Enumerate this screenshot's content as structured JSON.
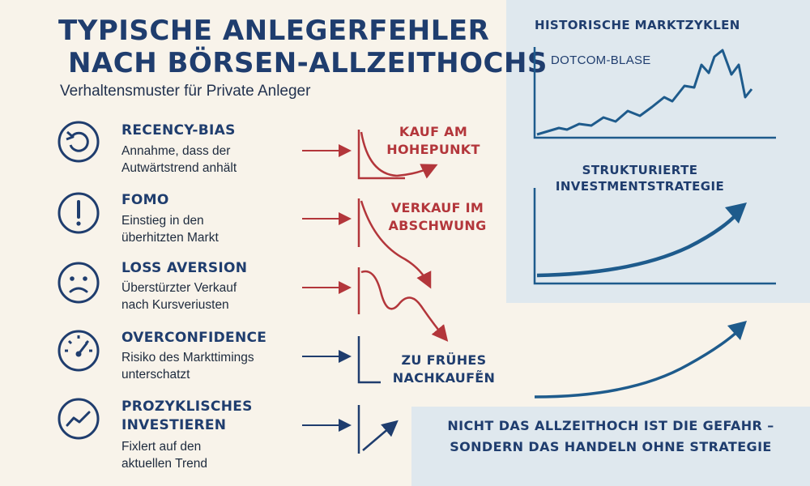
{
  "header": {
    "title_line1": "TYPISCHE ANLEGERFEHLER",
    "title_line2": "NACH BÖRSEN-ALLZEITHOCHS",
    "subtitle": "Verhaltensmuster für Private Anleger"
  },
  "errors": [
    {
      "icon": "refresh-icon",
      "heading": "RECENCY-BIAS",
      "desc_line1": "Annahme, dass der",
      "desc_line2": "Autwärtstrend anhält"
    },
    {
      "icon": "exclamation-icon",
      "heading": "FOMO",
      "desc_line1": "Einstieg in den",
      "desc_line2": "überhitzten Markt"
    },
    {
      "icon": "sad-face-icon",
      "heading": "LOSS AVERSION",
      "desc_line1": "Überstürzter Verkauf",
      "desc_line2": "nach Kursveriusten"
    },
    {
      "icon": "gauge-icon",
      "heading": "OVERCONFIDENCE",
      "desc_line1": "Risiko des Markttimings",
      "desc_line2": "unterschatzt"
    },
    {
      "icon": "trend-icon",
      "heading": "PROZYKLISCHES",
      "heading_line2": "INVESTIEREN",
      "desc_line1": "Fixlert auf den",
      "desc_line2": "aktuellen Trend"
    }
  ],
  "outcomes": [
    {
      "line1": "KAUF AM",
      "line2": "HOHEPUNKT"
    },
    {
      "line1": "VERKAUF IM",
      "line2": "ABSCHWUNG"
    },
    {
      "line1": "ZU FRÜHES",
      "line2": "NACHKAUFẼN"
    }
  ],
  "right_panel": {
    "title": "HISTORISCHE MARKTZYKLEN",
    "bubble_label": "DOTCOM-BLASE",
    "strategy_line1": "STRUKTURIERTE",
    "strategy_line2": "INVESTMENTSTRATEGIE"
  },
  "banner": {
    "line1": "NICHT DAS ALLZEITHOCH IST DIE GEFAHR –",
    "line2": "SONDERN DAS HANDELN OHNE STRATEGIE"
  },
  "colors": {
    "navy": "#1f3d6e",
    "red": "#b3363b",
    "chart_blue": "#1e5b8c",
    "panel": "#dfe8ee",
    "background": "#f8f3ea"
  }
}
